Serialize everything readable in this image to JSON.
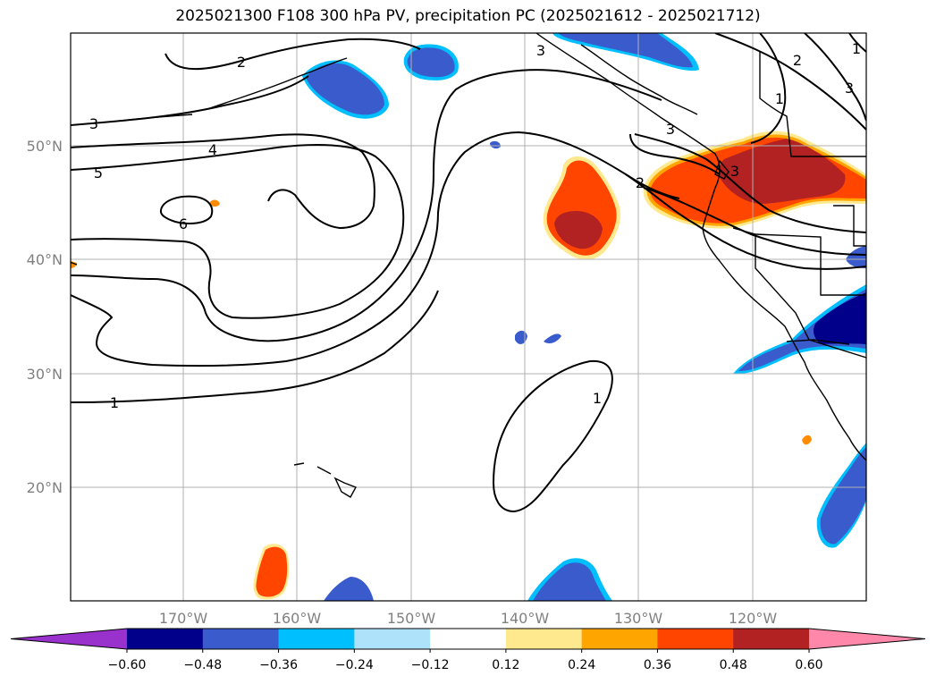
{
  "title": "2025021300 F108 300 hPa PV, precipitation PC (2025021612 - 2025021712)",
  "lat_labels": [
    "50°N",
    "40°N",
    "30°N",
    "20°N"
  ],
  "lon_labels": [
    "170°W",
    "160°W",
    "150°W",
    "140°W",
    "130°W",
    "120°W"
  ],
  "contour_labels": [
    "2",
    "3",
    "3",
    "4",
    "5",
    "6",
    "1",
    "2",
    "3",
    "1",
    "2",
    "3",
    "1",
    "3",
    "1"
  ],
  "colorbar": {
    "ticks": [
      "−0.60",
      "−0.48",
      "−0.36",
      "−0.24",
      "−0.12",
      "0.12",
      "0.24",
      "0.36",
      "0.48",
      "0.60"
    ],
    "colors": [
      "#9932CC",
      "#00008B",
      "#3A5BCC",
      "#00BFFF",
      "#AEE2FA",
      "#FFFFFF",
      "#FFE98E",
      "#FFA500",
      "#FF4500",
      "#B22222",
      "#FF88AA"
    ]
  },
  "colors": {
    "land_line": "#000000",
    "grid": "#b0b0b0",
    "contour": "#000000"
  }
}
